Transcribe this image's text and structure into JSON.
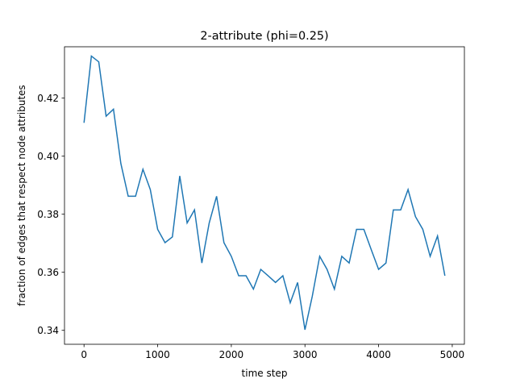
{
  "chart_data": {
    "type": "line",
    "title": "2-attribute (phi=0.25)",
    "xlabel": "time step",
    "ylabel": "fraction of edges that respect node attributes",
    "xlim": [
      -265,
      5165
    ],
    "ylim": [
      0.3352,
      0.4377
    ],
    "xticks": [
      0,
      1000,
      2000,
      3000,
      4000,
      5000
    ],
    "yticks": [
      0.34,
      0.36,
      0.38,
      0.4,
      0.42
    ],
    "ytick_labels": [
      "0.34",
      "0.36",
      "0.38",
      "0.40",
      "0.42"
    ],
    "grid": false,
    "series": [
      {
        "name": "",
        "color": "#1f77b4",
        "x": [
          0,
          100,
          200,
          300,
          400,
          500,
          600,
          700,
          800,
          900,
          1000,
          1100,
          1200,
          1300,
          1400,
          1500,
          1600,
          1700,
          1800,
          1900,
          2000,
          2100,
          2200,
          2300,
          2400,
          2500,
          2600,
          2700,
          2800,
          2900,
          3000,
          3100,
          3200,
          3300,
          3400,
          3500,
          3600,
          3700,
          3800,
          3900,
          4000,
          4100,
          4200,
          4300,
          4400,
          4500,
          4600,
          4700,
          4800,
          4900
        ],
        "y": [
          0.4115,
          0.4345,
          0.4325,
          0.4138,
          0.4162,
          0.3975,
          0.3862,
          0.3862,
          0.3955,
          0.3885,
          0.3748,
          0.3702,
          0.3722,
          0.3932,
          0.377,
          0.3815,
          0.3632,
          0.377,
          0.3862,
          0.3702,
          0.3655,
          0.3588,
          0.3588,
          0.3542,
          0.361,
          0.3588,
          0.3565,
          0.3588,
          0.3495,
          0.3565,
          0.3402,
          0.3518,
          0.3655,
          0.361,
          0.3542,
          0.3655,
          0.3632,
          0.3748,
          0.3748,
          0.3678,
          0.361,
          0.3632,
          0.3815,
          0.3815,
          0.3885,
          0.3792,
          0.3748,
          0.3655,
          0.3725,
          0.3588
        ]
      }
    ]
  }
}
